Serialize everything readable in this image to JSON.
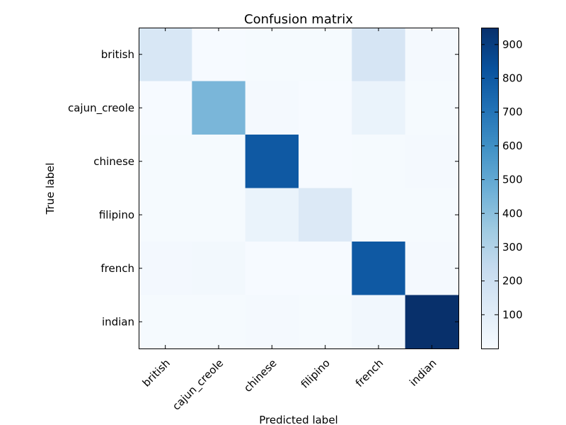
{
  "chart_data": {
    "type": "heatmap",
    "title": "Confusion matrix",
    "xlabel": "Predicted label",
    "ylabel": "True label",
    "x_categories": [
      "british",
      "cajun_creole",
      "chinese",
      "filipino",
      "french",
      "indian"
    ],
    "y_categories": [
      "british",
      "cajun_creole",
      "chinese",
      "filipino",
      "french",
      "indian"
    ],
    "values": [
      [
        150,
        5,
        10,
        8,
        160,
        15
      ],
      [
        5,
        440,
        12,
        5,
        60,
        10
      ],
      [
        8,
        10,
        800,
        5,
        10,
        12
      ],
      [
        8,
        10,
        60,
        130,
        10,
        10
      ],
      [
        20,
        25,
        5,
        5,
        800,
        15
      ],
      [
        8,
        8,
        15,
        10,
        30,
        950
      ]
    ],
    "colorbar": {
      "range": [
        0,
        950
      ],
      "ticks": [
        100,
        200,
        300,
        400,
        500,
        600,
        700,
        800,
        900
      ]
    },
    "colormap": [
      "#f7fbff",
      "#deebf7",
      "#c6dbef",
      "#9ecae1",
      "#6baed6",
      "#4292c6",
      "#2171b5",
      "#08519c",
      "#08306b"
    ]
  }
}
